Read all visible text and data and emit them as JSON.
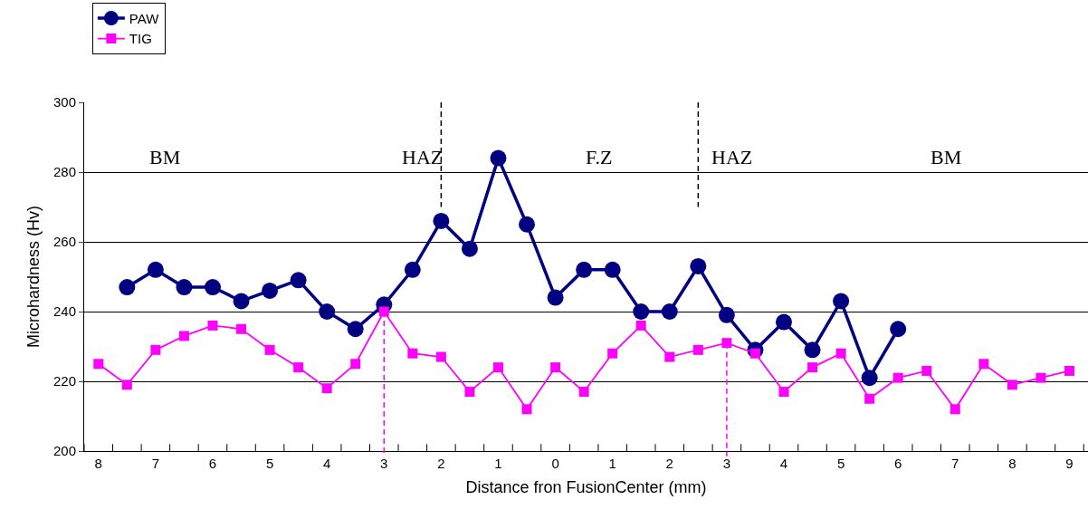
{
  "chart_data": {
    "type": "line",
    "xlabel": "Distance fron FusionCenter (mm)",
    "ylabel": "Microhardness (Hv)",
    "categories": [
      "8",
      null,
      "7",
      null,
      "6",
      null,
      "5",
      null,
      "4",
      null,
      "3",
      null,
      "2",
      null,
      "1",
      null,
      "0",
      null,
      "1",
      null,
      "2",
      null,
      "3",
      null,
      "4",
      null,
      "5",
      null,
      "6",
      null,
      "7",
      null,
      "8",
      null,
      "9"
    ],
    "ylim": [
      200,
      300
    ],
    "yticks": [
      200,
      220,
      240,
      260,
      280,
      300
    ],
    "grid": "y",
    "legend": "top left",
    "series": [
      {
        "name": "PAW",
        "color": "#000080",
        "marker": "circle",
        "values": [
          null,
          247,
          252,
          247,
          247,
          243,
          246,
          249,
          240,
          235,
          242,
          252,
          266,
          258,
          284,
          265,
          244,
          252,
          252,
          240,
          240,
          253,
          239,
          229,
          237,
          229,
          243,
          221,
          235,
          null,
          null,
          null,
          null,
          null,
          null
        ]
      },
      {
        "name": "TIG",
        "color": "#ff00ff",
        "marker": "square",
        "values": [
          225,
          219,
          229,
          233,
          236,
          235,
          229,
          224,
          218,
          225,
          240,
          228,
          227,
          217,
          224,
          212,
          224,
          217,
          228,
          236,
          227,
          229,
          231,
          228,
          217,
          224,
          228,
          215,
          221,
          223,
          212,
          225,
          219,
          221,
          223
        ]
      }
    ],
    "annotations": [
      "BM",
      "HAZ",
      "F.Z",
      "HAZ",
      "BM"
    ]
  }
}
